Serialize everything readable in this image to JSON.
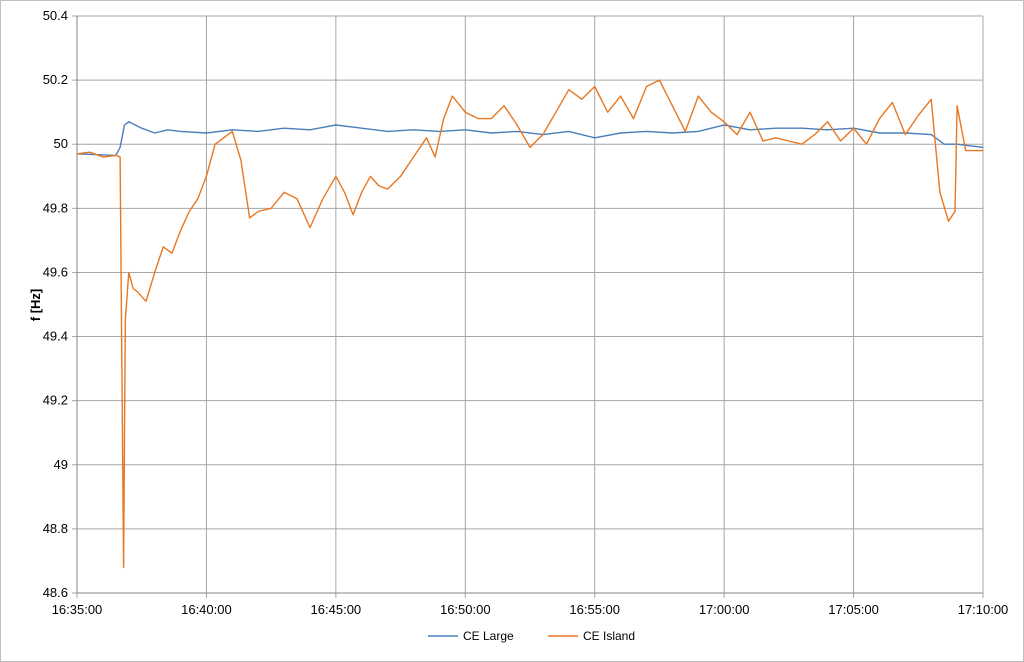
{
  "chart_data": {
    "type": "line",
    "title": "",
    "xlabel": "",
    "ylabel": "f [Hz]",
    "ylim": [
      48.6,
      50.4
    ],
    "yticks": [
      "48.6",
      "48.8",
      "49",
      "49.2",
      "49.4",
      "49.6",
      "49.8",
      "50",
      "50.2",
      "50.4"
    ],
    "xlim": [
      "16:35:00",
      "17:10:00"
    ],
    "xticks": [
      "16:35:00",
      "16:40:00",
      "16:45:00",
      "16:50:00",
      "16:55:00",
      "17:00:00",
      "17:05:00",
      "17:10:00"
    ],
    "grid": true,
    "legend_position": "bottom",
    "series": [
      {
        "name": "CE Large",
        "color": "#4a7ebb",
        "x": [
          "16:35:00",
          "16:36:30",
          "16:36:40",
          "16:36:50",
          "16:37:00",
          "16:37:30",
          "16:38:00",
          "16:38:30",
          "16:39:00",
          "16:40:00",
          "16:41:00",
          "16:42:00",
          "16:43:00",
          "16:44:00",
          "16:45:00",
          "16:46:00",
          "16:47:00",
          "16:48:00",
          "16:49:00",
          "16:50:00",
          "16:51:00",
          "16:52:00",
          "16:53:00",
          "16:54:00",
          "16:55:00",
          "16:56:00",
          "16:57:00",
          "16:58:00",
          "16:59:00",
          "17:00:00",
          "17:01:00",
          "17:02:00",
          "17:03:00",
          "17:04:00",
          "17:05:00",
          "17:06:00",
          "17:07:00",
          "17:08:00",
          "17:08:30",
          "17:09:00",
          "17:10:00"
        ],
        "y": [
          49.97,
          49.965,
          49.99,
          50.06,
          50.07,
          50.05,
          50.035,
          50.045,
          50.04,
          50.035,
          50.045,
          50.04,
          50.05,
          50.045,
          50.06,
          50.05,
          50.04,
          50.045,
          50.04,
          50.045,
          50.035,
          50.04,
          50.03,
          50.04,
          50.02,
          50.035,
          50.04,
          50.035,
          50.04,
          50.06,
          50.045,
          50.05,
          50.05,
          50.045,
          50.05,
          50.035,
          50.035,
          50.03,
          50.0,
          50.0,
          49.99
        ]
      },
      {
        "name": "CE Island",
        "color": "#e87722",
        "x": [
          "16:35:00",
          "16:35:30",
          "16:36:00",
          "16:36:30",
          "16:36:40",
          "16:36:48",
          "16:36:52",
          "16:37:00",
          "16:37:10",
          "16:37:20",
          "16:37:40",
          "16:38:00",
          "16:38:20",
          "16:38:40",
          "16:39:00",
          "16:39:20",
          "16:39:40",
          "16:40:00",
          "16:40:20",
          "16:40:40",
          "16:41:00",
          "16:41:20",
          "16:41:40",
          "16:42:00",
          "16:42:30",
          "16:43:00",
          "16:43:30",
          "16:44:00",
          "16:44:30",
          "16:45:00",
          "16:45:20",
          "16:45:40",
          "16:46:00",
          "16:46:20",
          "16:46:40",
          "16:47:00",
          "16:47:30",
          "16:48:00",
          "16:48:30",
          "16:48:50",
          "16:49:10",
          "16:49:30",
          "16:50:00",
          "16:50:30",
          "16:51:00",
          "16:51:30",
          "16:52:00",
          "16:52:30",
          "16:53:00",
          "16:53:30",
          "16:54:00",
          "16:54:30",
          "16:55:00",
          "16:55:30",
          "16:56:00",
          "16:56:30",
          "16:57:00",
          "16:57:30",
          "16:58:00",
          "16:58:30",
          "16:59:00",
          "16:59:30",
          "17:00:00",
          "17:00:30",
          "17:01:00",
          "17:01:30",
          "17:02:00",
          "17:02:30",
          "17:03:00",
          "17:03:30",
          "17:04:00",
          "17:04:30",
          "17:05:00",
          "17:05:30",
          "17:06:00",
          "17:06:30",
          "17:07:00",
          "17:07:30",
          "17:08:00",
          "17:08:20",
          "17:08:40",
          "17:08:55",
          "17:09:00",
          "17:09:20",
          "17:10:00"
        ],
        "y": [
          49.97,
          49.975,
          49.96,
          49.965,
          49.96,
          48.68,
          49.45,
          49.6,
          49.55,
          49.54,
          49.51,
          49.6,
          49.68,
          49.66,
          49.73,
          49.79,
          49.83,
          49.9,
          50.0,
          50.02,
          50.04,
          49.95,
          49.77,
          49.79,
          49.8,
          49.85,
          49.83,
          49.74,
          49.83,
          49.9,
          49.85,
          49.78,
          49.85,
          49.9,
          49.87,
          49.86,
          49.9,
          49.96,
          50.02,
          49.96,
          50.08,
          50.15,
          50.1,
          50.08,
          50.08,
          50.12,
          50.06,
          49.99,
          50.03,
          50.1,
          50.17,
          50.14,
          50.18,
          50.1,
          50.15,
          50.08,
          50.18,
          50.2,
          50.12,
          50.04,
          50.15,
          50.1,
          50.07,
          50.03,
          50.1,
          50.01,
          50.02,
          50.01,
          50.0,
          50.03,
          50.07,
          50.01,
          50.05,
          50.0,
          50.08,
          50.13,
          50.03,
          50.09,
          50.14,
          49.85,
          49.76,
          49.79,
          50.12,
          49.98,
          49.98
        ]
      }
    ]
  }
}
